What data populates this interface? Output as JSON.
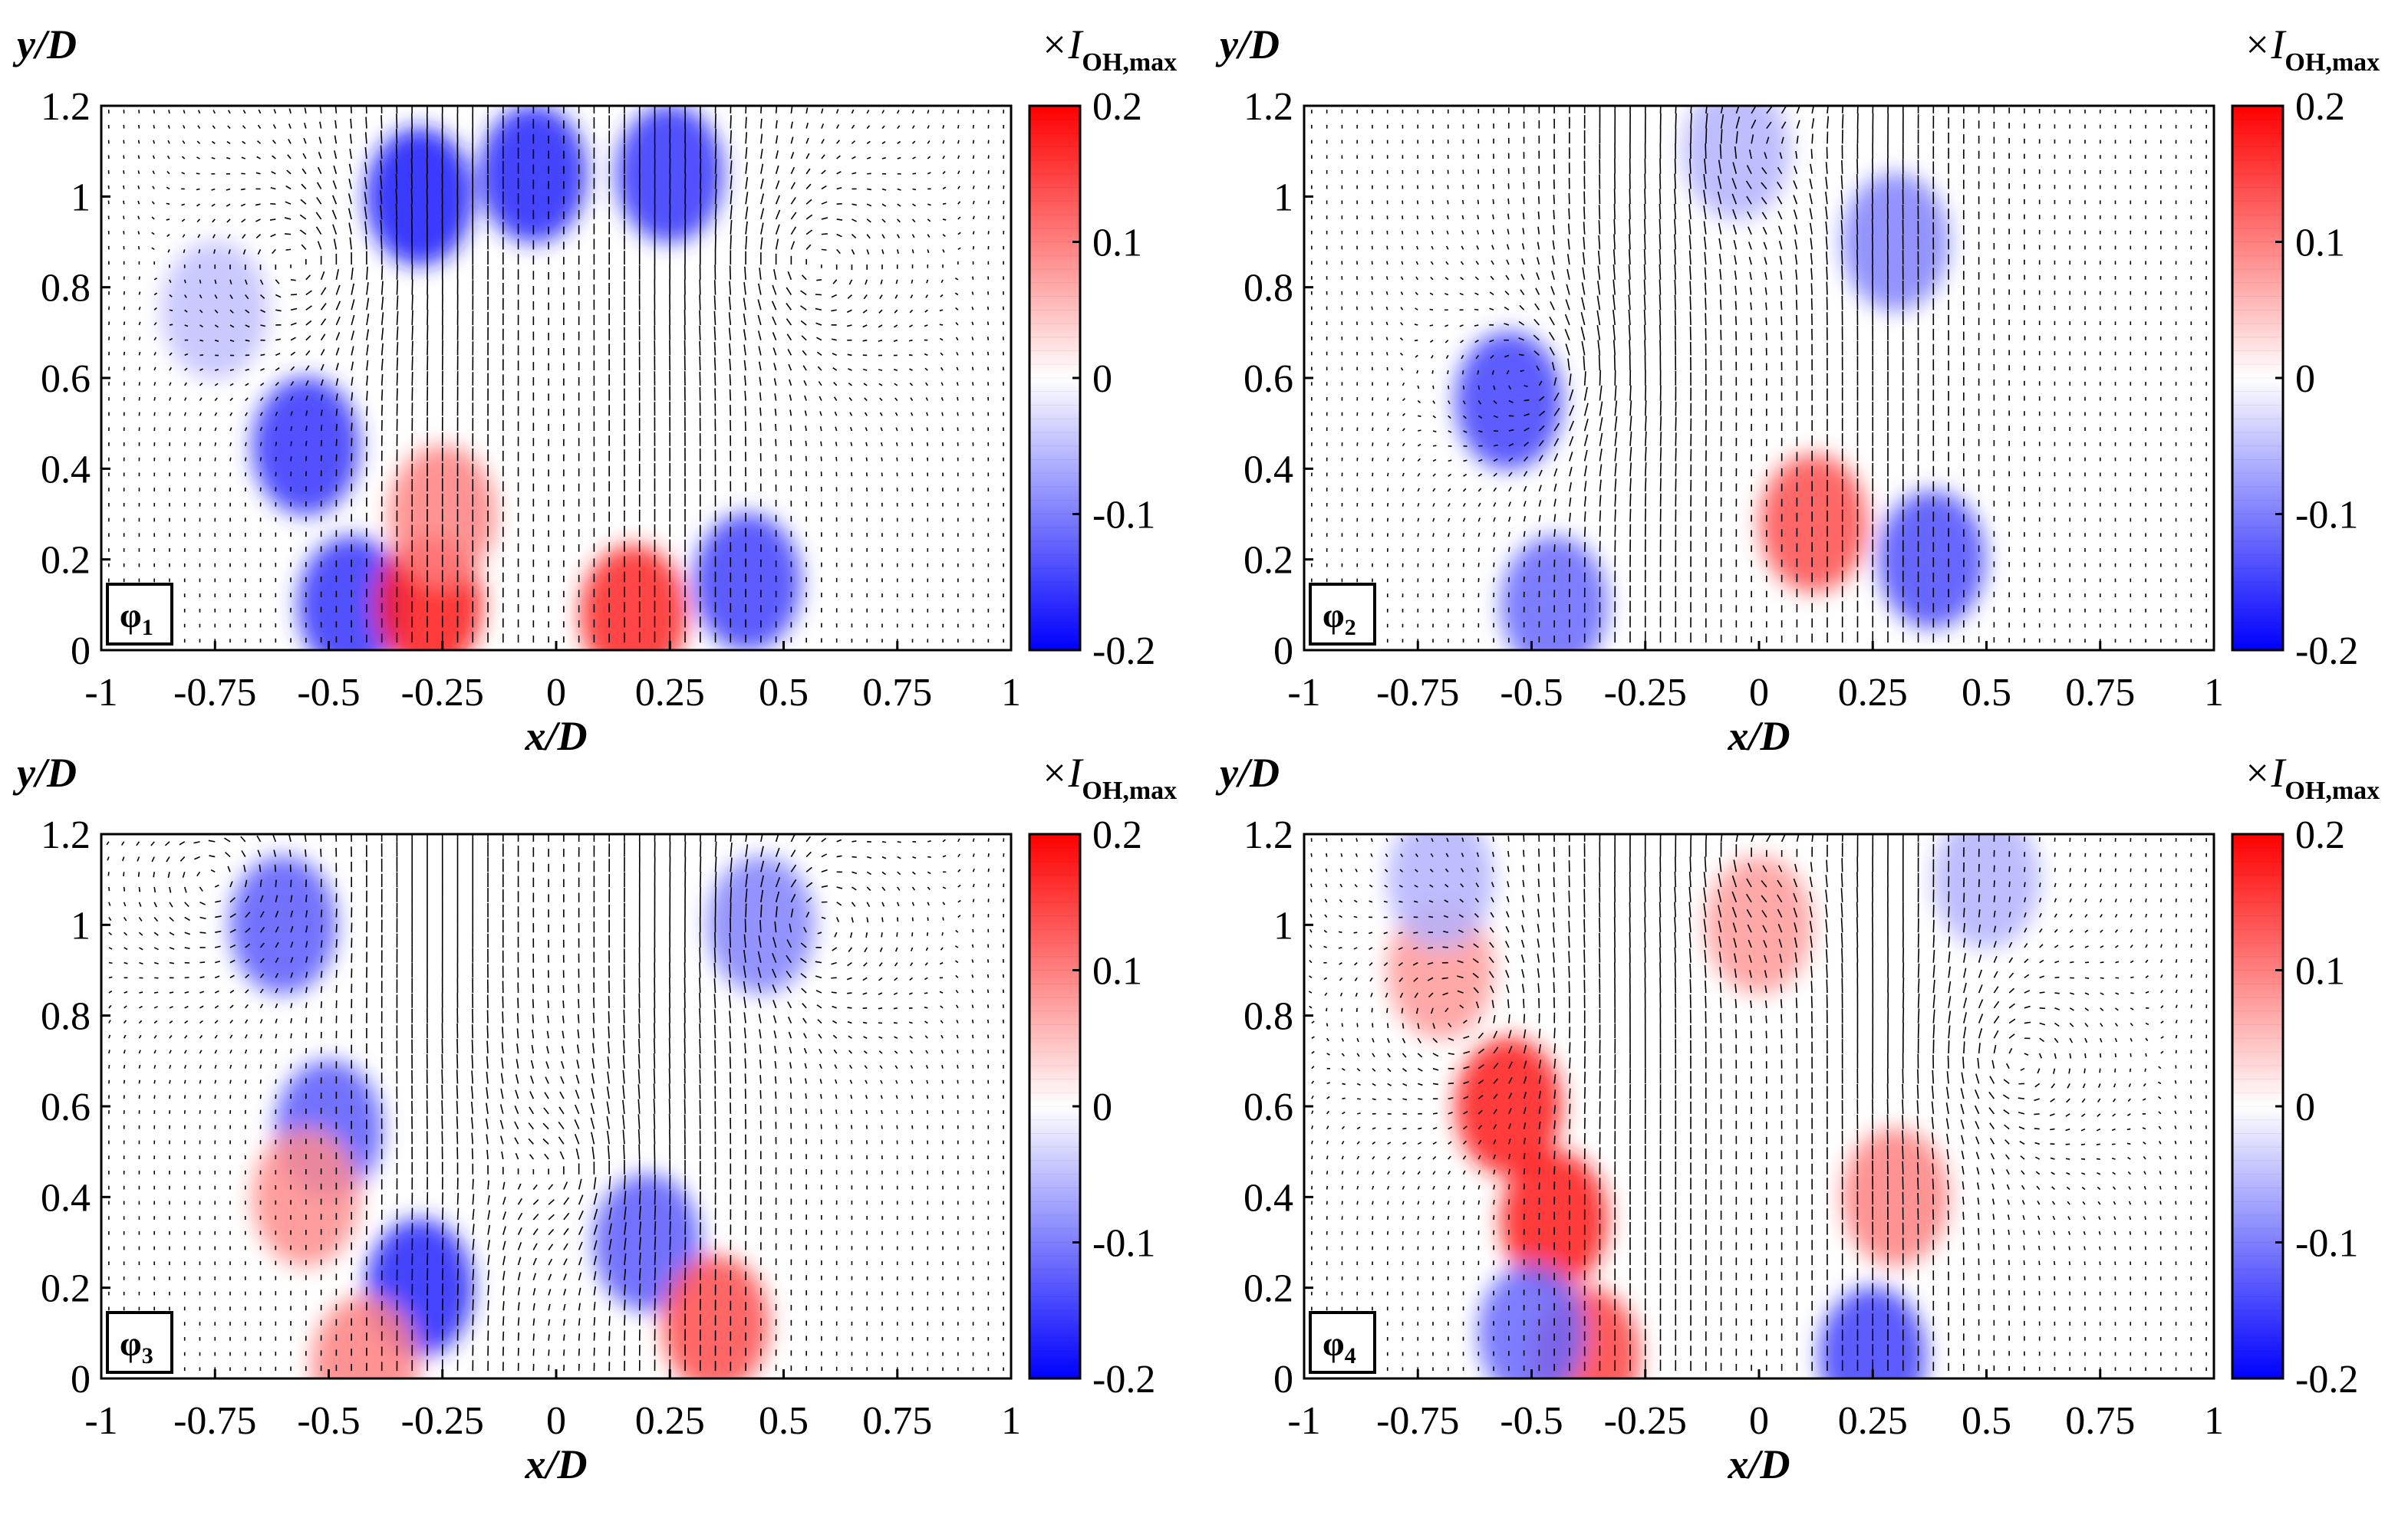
{
  "chart_data": [
    {
      "type": "heatmap",
      "panel_label": "φ",
      "panel_label_sub": "1",
      "xlabel": "x/D",
      "ylabel": "y/D",
      "xlim": [
        -1,
        1
      ],
      "ylim": [
        0,
        1.2
      ],
      "xticks": [
        "-1",
        "-0.75",
        "-0.5",
        "-0.25",
        "0",
        "0.25",
        "0.5",
        "0.75",
        "1"
      ],
      "yticks": [
        "0",
        "0.2",
        "0.4",
        "0.6",
        "0.8",
        "1",
        "1.2"
      ],
      "colorbar": {
        "label": "×I",
        "label_sub": "OH,max",
        "range": [
          -0.2,
          0.2
        ],
        "ticks": [
          "0.2",
          "0.1",
          "0",
          "-0.1",
          "-0.2"
        ],
        "colors": [
          "#0000ff",
          "#ffffff",
          "#ff0000"
        ]
      },
      "blobs": [
        {
          "x": -0.3,
          "y": 1.0,
          "v": -0.18
        },
        {
          "x": -0.05,
          "y": 1.05,
          "v": -0.17
        },
        {
          "x": 0.25,
          "y": 1.05,
          "v": -0.16
        },
        {
          "x": -0.55,
          "y": 0.45,
          "v": -0.16
        },
        {
          "x": -0.45,
          "y": 0.1,
          "v": -0.16
        },
        {
          "x": 0.42,
          "y": 0.15,
          "v": -0.15
        },
        {
          "x": -0.28,
          "y": 0.1,
          "v": 0.18
        },
        {
          "x": 0.17,
          "y": 0.08,
          "v": 0.17
        },
        {
          "x": -0.25,
          "y": 0.3,
          "v": 0.1
        },
        {
          "x": -0.75,
          "y": 0.75,
          "v": -0.05
        }
      ],
      "vortices": [
        {
          "x": -0.55,
          "y": 0.85,
          "s": 1
        },
        {
          "x": 0.55,
          "y": 0.85,
          "s": -1
        }
      ]
    },
    {
      "type": "heatmap",
      "panel_label": "φ",
      "panel_label_sub": "2",
      "xlabel": "x/D",
      "ylabel": "y/D",
      "xlim": [
        -1,
        1
      ],
      "ylim": [
        0,
        1.2
      ],
      "xticks": [
        "-1",
        "-0.75",
        "-0.5",
        "-0.25",
        "0",
        "0.25",
        "0.5",
        "0.75",
        "1"
      ],
      "yticks": [
        "0",
        "0.2",
        "0.4",
        "0.6",
        "0.8",
        "1",
        "1.2"
      ],
      "colorbar": {
        "label": "×I",
        "label_sub": "OH,max",
        "range": [
          -0.2,
          0.2
        ],
        "ticks": [
          "0.2",
          "0.1",
          "0",
          "-0.1",
          "-0.2"
        ],
        "colors": [
          "#0000ff",
          "#ffffff",
          "#ff0000"
        ]
      },
      "blobs": [
        {
          "x": -0.55,
          "y": 0.55,
          "v": -0.15
        },
        {
          "x": -0.45,
          "y": 0.1,
          "v": -0.12
        },
        {
          "x": 0.38,
          "y": 0.2,
          "v": -0.14
        },
        {
          "x": 0.3,
          "y": 0.9,
          "v": -0.1
        },
        {
          "x": 0.12,
          "y": 0.28,
          "v": 0.14
        },
        {
          "x": -0.05,
          "y": 1.1,
          "v": -0.06
        }
      ],
      "vortices": [
        {
          "x": 0.0,
          "y": 1.1,
          "s": -1
        },
        {
          "x": -0.45,
          "y": 0.6,
          "s": 1
        }
      ]
    },
    {
      "type": "heatmap",
      "panel_label": "φ",
      "panel_label_sub": "3",
      "xlabel": "x/D",
      "ylabel": "y/D",
      "xlim": [
        -1,
        1
      ],
      "ylim": [
        0,
        1.2
      ],
      "xticks": [
        "-1",
        "-0.75",
        "-0.5",
        "-0.25",
        "0",
        "0.25",
        "0.5",
        "0.75",
        "1"
      ],
      "yticks": [
        "0",
        "0.2",
        "0.4",
        "0.6",
        "0.8",
        "1",
        "1.2"
      ],
      "colorbar": {
        "label": "×I",
        "label_sub": "OH,max",
        "range": [
          -0.2,
          0.2
        ],
        "ticks": [
          "0.2",
          "0.1",
          "0",
          "-0.1",
          "-0.2"
        ],
        "colors": [
          "#0000ff",
          "#ffffff",
          "#ff0000"
        ]
      },
      "blobs": [
        {
          "x": -0.3,
          "y": 0.2,
          "v": -0.17
        },
        {
          "x": -0.5,
          "y": 0.55,
          "v": -0.13
        },
        {
          "x": -0.6,
          "y": 1.0,
          "v": -0.13
        },
        {
          "x": 0.2,
          "y": 0.3,
          "v": -0.13
        },
        {
          "x": 0.45,
          "y": 1.0,
          "v": -0.1
        },
        {
          "x": 0.35,
          "y": 0.12,
          "v": 0.14
        },
        {
          "x": -0.55,
          "y": 0.4,
          "v": 0.09
        },
        {
          "x": -0.42,
          "y": 0.03,
          "v": 0.1
        }
      ],
      "vortices": [
        {
          "x": -0.75,
          "y": 1.1,
          "s": 1
        },
        {
          "x": 0.55,
          "y": 1.0,
          "s": -1
        },
        {
          "x": 0.0,
          "y": 0.45,
          "s": 1
        }
      ]
    },
    {
      "type": "heatmap",
      "panel_label": "φ",
      "panel_label_sub": "4",
      "xlabel": "x/D",
      "ylabel": "y/D",
      "xlim": [
        -1,
        1
      ],
      "ylim": [
        0,
        1.2
      ],
      "xticks": [
        "-1",
        "-0.75",
        "-0.5",
        "-0.25",
        "0",
        "0.25",
        "0.5",
        "0.75",
        "1"
      ],
      "yticks": [
        "0",
        "0.2",
        "0.4",
        "0.6",
        "0.8",
        "1",
        "1.2"
      ],
      "colorbar": {
        "label": "×I",
        "label_sub": "OH,max",
        "range": [
          -0.2,
          0.2
        ],
        "ticks": [
          "0.2",
          "0.1",
          "0",
          "-0.1",
          "-0.2"
        ],
        "colors": [
          "#0000ff",
          "#ffffff",
          "#ff0000"
        ]
      },
      "blobs": [
        {
          "x": -0.55,
          "y": 0.6,
          "v": 0.18
        },
        {
          "x": -0.45,
          "y": 0.35,
          "v": 0.18
        },
        {
          "x": -0.38,
          "y": 0.05,
          "v": 0.15
        },
        {
          "x": -0.7,
          "y": 0.9,
          "v": 0.08
        },
        {
          "x": 0.3,
          "y": 0.4,
          "v": 0.1
        },
        {
          "x": 0.0,
          "y": 1.0,
          "v": 0.08
        },
        {
          "x": -0.5,
          "y": 0.1,
          "v": -0.12
        },
        {
          "x": 0.25,
          "y": 0.05,
          "v": -0.15
        },
        {
          "x": 0.5,
          "y": 1.1,
          "v": -0.06
        },
        {
          "x": -0.7,
          "y": 1.1,
          "v": -0.06
        }
      ],
      "vortices": [
        {
          "x": -0.65,
          "y": 0.8,
          "s": 1
        },
        {
          "x": 0.55,
          "y": 0.7,
          "s": -1
        },
        {
          "x": 0.0,
          "y": 1.15,
          "s": -1
        }
      ]
    }
  ]
}
